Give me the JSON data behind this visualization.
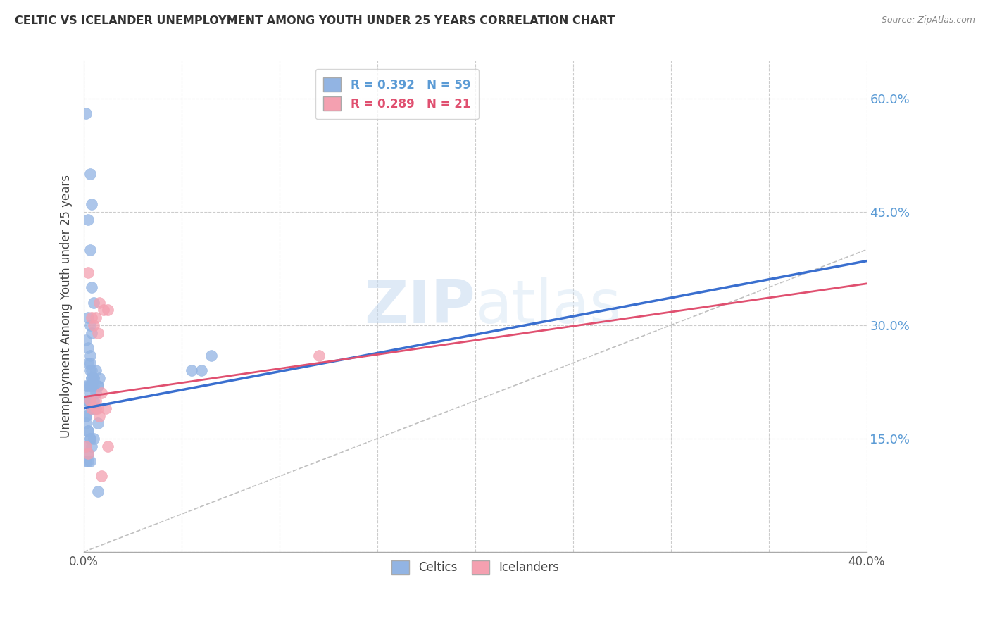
{
  "title": "CELTIC VS ICELANDER UNEMPLOYMENT AMONG YOUTH UNDER 25 YEARS CORRELATION CHART",
  "source": "Source: ZipAtlas.com",
  "ylabel": "Unemployment Among Youth under 25 years",
  "xlim": [
    0.0,
    0.4
  ],
  "ylim": [
    0.0,
    0.65
  ],
  "xticks": [
    0.0,
    0.05,
    0.1,
    0.15,
    0.2,
    0.25,
    0.3,
    0.35,
    0.4
  ],
  "xticklabels": [
    "0.0%",
    "",
    "",
    "",
    "",
    "",
    "",
    "",
    "40.0%"
  ],
  "yticks_left": [
    0.0,
    0.15,
    0.3,
    0.45,
    0.6
  ],
  "yticks_right": [
    0.15,
    0.3,
    0.45,
    0.6
  ],
  "ytick_labels_right": [
    "15.0%",
    "30.0%",
    "45.0%",
    "60.0%"
  ],
  "watermark_zip": "ZIP",
  "watermark_atlas": "atlas",
  "celtics_color": "#92b4e3",
  "celtics_edge_color": "#7aa0d4",
  "icelanders_color": "#f4a0b0",
  "icelanders_edge_color": "#e888a0",
  "celtics_R": 0.392,
  "celtics_N": 59,
  "icelanders_R": 0.289,
  "icelanders_N": 21,
  "celtics_scatter_x": [
    0.001,
    0.003,
    0.004,
    0.002,
    0.003,
    0.004,
    0.005,
    0.002,
    0.003,
    0.004,
    0.001,
    0.002,
    0.003,
    0.002,
    0.003,
    0.003,
    0.004,
    0.004,
    0.005,
    0.005,
    0.001,
    0.002,
    0.003,
    0.004,
    0.004,
    0.005,
    0.006,
    0.006,
    0.007,
    0.007,
    0.001,
    0.002,
    0.002,
    0.003,
    0.003,
    0.004,
    0.005,
    0.005,
    0.006,
    0.008,
    0.001,
    0.001,
    0.001,
    0.002,
    0.002,
    0.003,
    0.003,
    0.004,
    0.001,
    0.001,
    0.002,
    0.002,
    0.003,
    0.055,
    0.06,
    0.065,
    0.007,
    0.005,
    0.007
  ],
  "celtics_scatter_y": [
    0.58,
    0.5,
    0.46,
    0.44,
    0.4,
    0.35,
    0.33,
    0.31,
    0.3,
    0.29,
    0.28,
    0.27,
    0.26,
    0.25,
    0.25,
    0.24,
    0.23,
    0.24,
    0.23,
    0.23,
    0.22,
    0.22,
    0.22,
    0.22,
    0.23,
    0.22,
    0.24,
    0.21,
    0.22,
    0.22,
    0.2,
    0.2,
    0.2,
    0.21,
    0.2,
    0.19,
    0.2,
    0.19,
    0.19,
    0.23,
    0.18,
    0.18,
    0.17,
    0.16,
    0.16,
    0.15,
    0.15,
    0.14,
    0.14,
    0.12,
    0.13,
    0.12,
    0.12,
    0.24,
    0.24,
    0.26,
    0.17,
    0.15,
    0.08
  ],
  "icelanders_scatter_x": [
    0.002,
    0.008,
    0.01,
    0.006,
    0.004,
    0.012,
    0.005,
    0.007,
    0.009,
    0.003,
    0.006,
    0.006,
    0.011,
    0.012,
    0.12,
    0.001,
    0.002,
    0.008,
    0.009,
    0.004,
    0.007
  ],
  "icelanders_scatter_y": [
    0.37,
    0.33,
    0.32,
    0.31,
    0.31,
    0.32,
    0.3,
    0.29,
    0.21,
    0.2,
    0.2,
    0.19,
    0.19,
    0.14,
    0.26,
    0.14,
    0.13,
    0.18,
    0.1,
    0.19,
    0.19
  ],
  "celtics_line_x": [
    0.0,
    0.4
  ],
  "celtics_line_y": [
    0.19,
    0.385
  ],
  "icelanders_line_x": [
    0.0,
    0.4
  ],
  "icelanders_line_y": [
    0.205,
    0.355
  ],
  "diagonal_line_x": [
    0.0,
    0.4
  ],
  "diagonal_line_y": [
    0.0,
    0.4
  ],
  "background_color": "#ffffff",
  "grid_color": "#cccccc",
  "title_color": "#333333",
  "right_yaxis_color": "#5b9bd5",
  "legend_blue_label": "R = 0.392   N = 59",
  "legend_pink_label": "R = 0.289   N = 21",
  "celtics_legend_label": "Celtics",
  "icelanders_legend_label": "Icelanders"
}
